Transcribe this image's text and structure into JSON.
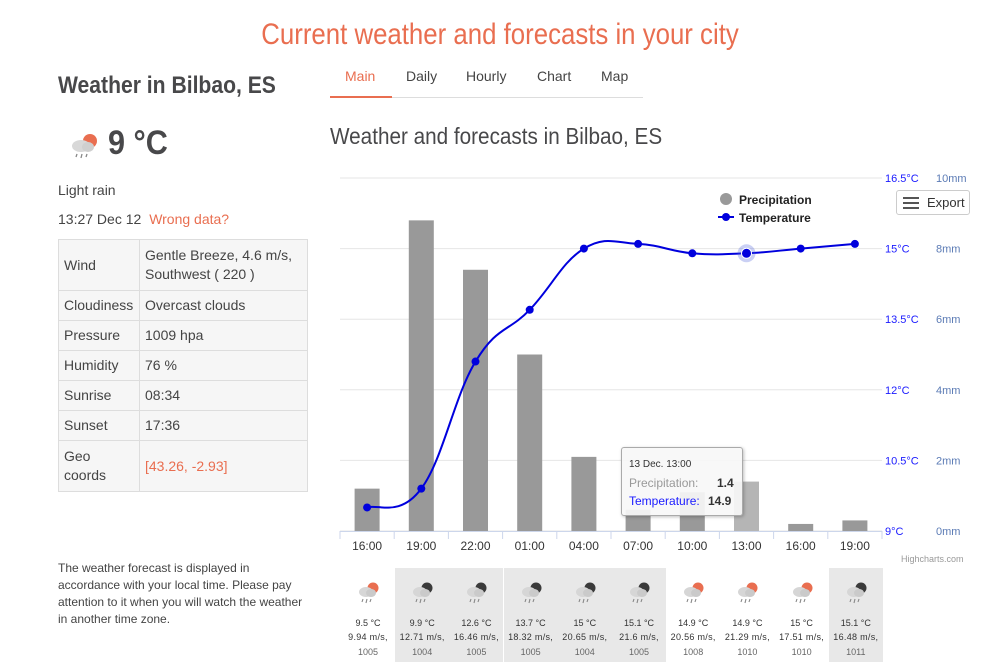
{
  "page_title": "Current weather and forecasts in your city",
  "current": {
    "city_heading": "Weather in Bilbao, ES",
    "icon": "light-rain-partly-cloudy-icon",
    "temperature": "9 °C",
    "description": "Light rain",
    "time": "13:27 Dec 12",
    "wrong_data_link": "Wrong data?"
  },
  "info_table": [
    {
      "label": "Wind",
      "value": "Gentle Breeze, 4.6 m/s, Southwest ( 220 )"
    },
    {
      "label": "Cloudiness",
      "value": "Overcast clouds"
    },
    {
      "label": "Pressure",
      "value": "1009 hpa"
    },
    {
      "label": "Humidity",
      "value": "76 %"
    },
    {
      "label": "Sunrise",
      "value": "08:34"
    },
    {
      "label": "Sunset",
      "value": "17:36"
    },
    {
      "label": "Geo coords",
      "value": "[43.26, -2.93]"
    }
  ],
  "timezone_note": "The weather forecast is displayed in accordance with your local time. Please pay attention to it when you will watch the weather in another time zone.",
  "tabs": [
    "Main",
    "Daily",
    "Hourly",
    "Chart",
    "Map"
  ],
  "active_tab": "Main",
  "forecast_title": "Weather and forecasts in Bilbao, ES",
  "export_label": "Export",
  "credits": "Highcharts.com",
  "tooltip": {
    "date": "13 Dec. 13:00",
    "precip_label": "Precipitation:",
    "precip_value": "1.4",
    "temp_label": "Temperature:",
    "temp_value": "14.9"
  },
  "colors": {
    "accent": "#e96e50",
    "temperature_line": "#0000dd",
    "precip_bar": "#999999",
    "right_axis": "#5b7bb5"
  },
  "chart_data": {
    "type": "bar",
    "categories": [
      "16:00",
      "19:00",
      "22:00",
      "01:00",
      "04:00",
      "07:00",
      "10:00",
      "13:00",
      "16:00",
      "19:00"
    ],
    "series": [
      {
        "name": "Precipitation",
        "type": "bar",
        "axis": "right",
        "unit": "mm",
        "values": [
          1.2,
          8.8,
          7.4,
          5.0,
          2.1,
          0.6,
          1.1,
          1.4,
          0.2,
          0.3
        ]
      },
      {
        "name": "Temperature",
        "type": "line",
        "axis": "left",
        "unit": "°C",
        "values": [
          9.5,
          9.9,
          12.6,
          13.7,
          15.0,
          15.1,
          14.9,
          14.9,
          15.0,
          15.1
        ]
      }
    ],
    "left_axis": {
      "ticks": [
        "9°C",
        "10.5°C",
        "12°C",
        "13.5°C",
        "15°C",
        "16.5°C"
      ],
      "ylim": [
        9,
        16.5
      ]
    },
    "right_axis": {
      "ticks": [
        "0mm",
        "2mm",
        "4mm",
        "6mm",
        "8mm",
        "10mm"
      ],
      "ylim": [
        0,
        10
      ]
    },
    "legend": {
      "position": "top-right",
      "entries": [
        "Precipitation",
        "Temperature"
      ]
    },
    "highlighted_index": 7,
    "grid": true
  },
  "hourly_strip": [
    {
      "temp": "9.5 °C",
      "wind": "9.94 m/s,",
      "pressure": "1005",
      "icon": "partly-cloudy-rain-day-icon",
      "shaded": false
    },
    {
      "temp": "9.9 °C",
      "wind": "12.71 m/s,",
      "pressure": "1004",
      "icon": "cloudy-rain-night-icon",
      "shaded": true
    },
    {
      "temp": "12.6 °C",
      "wind": "16.46 m/s,",
      "pressure": "1005",
      "icon": "cloudy-rain-night-icon",
      "shaded": true
    },
    {
      "temp": "13.7 °C",
      "wind": "18.32 m/s,",
      "pressure": "1005",
      "icon": "cloudy-rain-night-icon",
      "shaded": true
    },
    {
      "temp": "15 °C",
      "wind": "20.65 m/s,",
      "pressure": "1004",
      "icon": "cloudy-rain-night-icon",
      "shaded": true
    },
    {
      "temp": "15.1 °C",
      "wind": "21.6 m/s,",
      "pressure": "1005",
      "icon": "cloudy-rain-night-icon",
      "shaded": true
    },
    {
      "temp": "14.9 °C",
      "wind": "20.56 m/s,",
      "pressure": "1008",
      "icon": "partly-cloudy-rain-day-icon",
      "shaded": false
    },
    {
      "temp": "14.9 °C",
      "wind": "21.29 m/s,",
      "pressure": "1010",
      "icon": "partly-cloudy-rain-day-icon",
      "shaded": false
    },
    {
      "temp": "15 °C",
      "wind": "17.51 m/s,",
      "pressure": "1010",
      "icon": "partly-cloudy-rain-day-icon",
      "shaded": false
    },
    {
      "temp": "15.1 °C",
      "wind": "16.48 m/s,",
      "pressure": "1011",
      "icon": "cloudy-rain-night-icon",
      "shaded": true
    }
  ]
}
